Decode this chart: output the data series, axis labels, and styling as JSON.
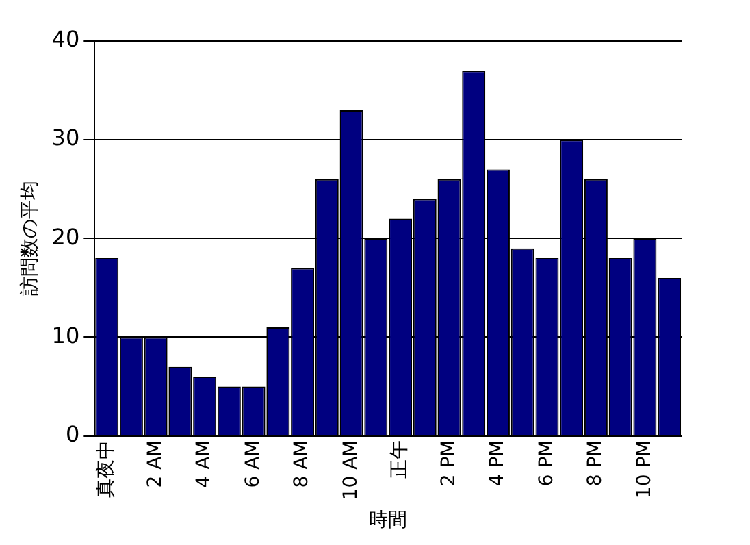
{
  "chart_data": {
    "type": "bar",
    "xlabel": "時間",
    "ylabel": "訪問数の平均",
    "categories": [
      "真夜中",
      null,
      "2 AM",
      null,
      "4 AM",
      null,
      "6 AM",
      null,
      "8 AM",
      null,
      "10 AM",
      null,
      "正午",
      null,
      "2 PM",
      null,
      "4 PM",
      null,
      "6 PM",
      null,
      "8 PM",
      null,
      "10 PM",
      null
    ],
    "values": [
      18,
      10,
      10,
      7,
      6,
      5,
      5,
      11,
      17,
      26,
      33,
      20,
      22,
      24,
      26,
      37,
      27,
      19,
      18,
      30,
      26,
      18,
      20,
      16
    ],
    "color": "#000080",
    "ylim": [
      0,
      40
    ],
    "yticks": [
      0,
      10,
      20,
      30,
      40
    ],
    "grid": "y"
  }
}
